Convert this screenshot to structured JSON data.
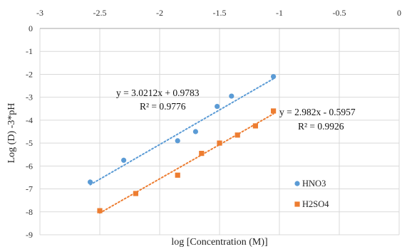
{
  "chart_data": {
    "type": "scatter",
    "xlabel": "log [Concentration (M)]",
    "ylabel": "Log (D) -3*pH",
    "xlim": [
      -3,
      0
    ],
    "ylim": [
      -9,
      0
    ],
    "x_ticks": [
      "-3",
      "-2.5",
      "-2",
      "-1.5",
      "-1",
      "-0.5",
      "0"
    ],
    "y_ticks": [
      "0",
      "-1",
      "-2",
      "-3",
      "-4",
      "-5",
      "-6",
      "-7",
      "-8",
      "-9"
    ],
    "x_axis_position": "top",
    "grid": "major both",
    "legend_position": "right",
    "series": [
      {
        "name": "HNO3",
        "marker": "circle",
        "color": "#5B9BD5",
        "x": [
          -2.58,
          -2.3,
          -1.85,
          -1.7,
          -1.52,
          -1.4,
          -1.05
        ],
        "y": [
          -6.7,
          -5.75,
          -4.9,
          -4.5,
          -3.4,
          -2.95,
          -2.1
        ],
        "trendline": {
          "type": "linear",
          "slope": 3.0212,
          "intercept": 0.9783,
          "x_range": [
            -2.58,
            -1.05
          ],
          "equation": "y = 3.0212x + 0.9783",
          "r2": "R² = 0.9776"
        }
      },
      {
        "name": "H2SO4",
        "marker": "square",
        "color": "#ED7D31",
        "x": [
          -2.5,
          -2.2,
          -1.85,
          -1.65,
          -1.5,
          -1.35,
          -1.2,
          -1.05
        ],
        "y": [
          -7.95,
          -7.2,
          -6.4,
          -5.45,
          -5.0,
          -4.65,
          -4.25,
          -3.6
        ],
        "trendline": {
          "type": "linear",
          "slope": 2.982,
          "intercept": -0.5957,
          "x_range": [
            -2.5,
            -1.05
          ],
          "equation": "y = 2.982x - 0.5957",
          "r2": "R² = 0.9926"
        }
      }
    ]
  }
}
